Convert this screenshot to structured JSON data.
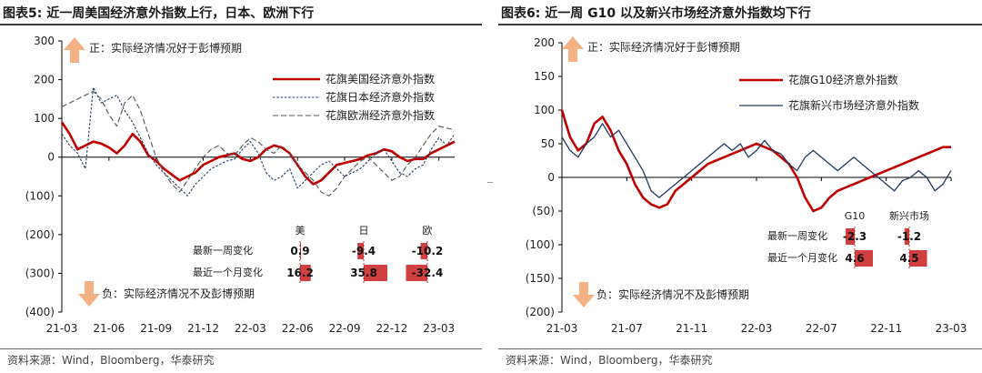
{
  "left": {
    "title": "图表5:   近一周美国经济意外指数上行，日本、欧洲下行",
    "source": "资料来源：Wind，Bloomberg，华泰研究",
    "up_note": "正：实际经济情况好于彭博预期",
    "down_note": "负：实际经济情况不及彭博预期",
    "table": {
      "headers": [
        "美",
        "日",
        "欧"
      ],
      "rows": [
        {
          "label": "最新一周变化",
          "values": [
            0.9,
            -9.4,
            -10.2
          ],
          "texts": [
            "0.9",
            "-9.4",
            "-10.2"
          ]
        },
        {
          "label": "最近一个月变化",
          "values": [
            16.2,
            35.8,
            -32.4
          ],
          "texts": [
            "16.2",
            "35.8",
            "-32.4"
          ]
        }
      ]
    }
  },
  "right": {
    "title": "图表6:   近一周 G10 以及新兴市场经济意外指数均下行",
    "source": "资料来源：Wind，Bloomberg，华泰研究",
    "up_note": "正：实际经济情况好于彭博预期",
    "down_note": "负：实际经济情况不及彭博预期",
    "table": {
      "headers": [
        "G10",
        "新兴市场"
      ],
      "rows": [
        {
          "label": "最新一周变化",
          "values": [
            -2.3,
            -1.2
          ],
          "texts": [
            "-2.3",
            "-1.2"
          ]
        },
        {
          "label": "最近一个月变化",
          "values": [
            4.6,
            4.5
          ],
          "texts": [
            "4.6",
            "4.5"
          ]
        }
      ]
    }
  },
  "colors": {
    "red": "#c00000",
    "navy": "#1f3864",
    "gray": "#555555",
    "arrow": "#f4b183"
  },
  "chart_data": [
    {
      "type": "line",
      "xlabel": "",
      "ylabel": "",
      "ylim": [
        -400,
        300
      ],
      "yticks": [
        300,
        200,
        100,
        0,
        -100,
        -200,
        -300,
        -400
      ],
      "ytick_labels": [
        "300",
        "200",
        "100",
        "0",
        "(100)",
        "(200)",
        "(300)",
        "(400)"
      ],
      "xlim": [
        0,
        25
      ],
      "xticks": [
        0,
        3,
        6,
        9,
        12,
        15,
        18,
        21,
        24
      ],
      "xtick_labels": [
        "21-03",
        "21-06",
        "21-09",
        "21-12",
        "22-03",
        "22-06",
        "22-09",
        "22-12",
        "23-03"
      ],
      "legend_position": "top-right",
      "series": [
        {
          "name": "花旗美国经济意外指数",
          "style": "solid-thick",
          "color": "#c00000",
          "x": [
            0,
            0.5,
            1,
            1.5,
            2,
            2.5,
            3,
            3.5,
            4,
            4.5,
            5,
            5.5,
            6,
            6.5,
            7,
            7.5,
            8,
            8.5,
            9,
            9.5,
            10,
            10.5,
            11,
            11.5,
            12,
            12.5,
            13,
            13.5,
            14,
            14.5,
            15,
            15.5,
            16,
            16.5,
            17,
            17.5,
            18,
            18.5,
            19,
            19.5,
            20,
            20.5,
            21,
            21.5,
            22,
            22.5,
            23,
            23.5,
            24,
            24.5,
            25
          ],
          "y": [
            90,
            60,
            20,
            30,
            40,
            35,
            25,
            10,
            30,
            60,
            40,
            5,
            -10,
            -30,
            -45,
            -60,
            -50,
            -40,
            -20,
            -10,
            0,
            5,
            10,
            -5,
            -10,
            0,
            20,
            30,
            25,
            10,
            -20,
            -50,
            -70,
            -60,
            -40,
            -20,
            -15,
            -10,
            -5,
            5,
            10,
            20,
            15,
            0,
            -10,
            -5,
            -5,
            10,
            20,
            30,
            40
          ]
        },
        {
          "name": "花旗日本经济意外指数",
          "style": "dotted",
          "color": "#1f3864",
          "x": [
            0,
            0.5,
            1,
            1.5,
            2,
            2.5,
            3,
            3.5,
            4,
            4.5,
            5,
            5.5,
            6,
            6.5,
            7,
            7.5,
            8,
            8.5,
            9,
            9.5,
            10,
            10.5,
            11,
            11.5,
            12,
            12.5,
            13,
            13.5,
            14,
            14.5,
            15,
            15.5,
            16,
            16.5,
            17,
            17.5,
            18,
            18.5,
            19,
            19.5,
            20,
            20.5,
            21,
            21.5,
            22,
            22.5,
            23,
            23.5,
            24,
            24.5,
            25
          ],
          "y": [
            60,
            30,
            10,
            -30,
            180,
            140,
            150,
            160,
            120,
            90,
            50,
            10,
            -20,
            -40,
            -60,
            -80,
            -100,
            -70,
            -50,
            -30,
            -20,
            -10,
            -5,
            20,
            40,
            10,
            -40,
            -60,
            -50,
            -30,
            -80,
            -60,
            -40,
            -20,
            -10,
            -30,
            -50,
            -40,
            -30,
            -10,
            10,
            20,
            -10,
            -40,
            -50,
            -30,
            -20,
            20,
            50,
            30,
            60
          ]
        },
        {
          "name": "花旗欧洲经济意外指数",
          "style": "dashed",
          "color": "#555555",
          "x": [
            0,
            0.5,
            1,
            1.5,
            2,
            2.5,
            3,
            3.5,
            4,
            4.5,
            5,
            5.5,
            6,
            6.5,
            7,
            7.5,
            8,
            8.5,
            9,
            9.5,
            10,
            10.5,
            11,
            11.5,
            12,
            12.5,
            13,
            13.5,
            14,
            14.5,
            15,
            15.5,
            16,
            16.5,
            17,
            17.5,
            18,
            18.5,
            19,
            19.5,
            20,
            20.5,
            21,
            21.5,
            22,
            22.5,
            23,
            23.5,
            24,
            24.5,
            25
          ],
          "y": [
            130,
            140,
            150,
            160,
            170,
            150,
            110,
            80,
            140,
            160,
            120,
            60,
            0,
            -40,
            -70,
            -90,
            -60,
            -30,
            0,
            20,
            30,
            10,
            5,
            30,
            50,
            40,
            20,
            10,
            30,
            10,
            -20,
            -40,
            -60,
            -90,
            -100,
            -80,
            -50,
            -30,
            -10,
            0,
            -20,
            -40,
            -60,
            -50,
            -20,
            0,
            30,
            60,
            80,
            75,
            70
          ]
        }
      ]
    },
    {
      "type": "line",
      "xlabel": "",
      "ylabel": "",
      "ylim": [
        -200,
        200
      ],
      "yticks": [
        200,
        150,
        100,
        50,
        0,
        -50,
        -100,
        -150,
        -200
      ],
      "ytick_labels": [
        "200",
        "150",
        "100",
        "50",
        "0",
        "(50)",
        "(100)",
        "(150)",
        "(200)"
      ],
      "xlim": [
        0,
        24
      ],
      "xticks": [
        0,
        4,
        8,
        12,
        16,
        20,
        24
      ],
      "xtick_labels": [
        "21-03",
        "21-07",
        "21-11",
        "22-03",
        "22-07",
        "22-11",
        "23-03"
      ],
      "legend_position": "top-right",
      "series": [
        {
          "name": "花旗G10经济意外指数",
          "style": "solid-thick",
          "color": "#c00000",
          "x": [
            0,
            0.5,
            1,
            1.5,
            2,
            2.5,
            3,
            3.5,
            4,
            4.5,
            5,
            5.5,
            6,
            6.5,
            7,
            7.5,
            8,
            8.5,
            9,
            9.5,
            10,
            10.5,
            11,
            11.5,
            12,
            12.5,
            13,
            13.5,
            14,
            14.5,
            15,
            15.5,
            16,
            16.5,
            17,
            17.5,
            18,
            18.5,
            19,
            19.5,
            20,
            20.5,
            21,
            21.5,
            22,
            22.5,
            23,
            23.5,
            24
          ],
          "y": [
            100,
            60,
            40,
            50,
            80,
            90,
            70,
            40,
            20,
            -10,
            -30,
            -40,
            -45,
            -40,
            -20,
            -10,
            0,
            10,
            20,
            25,
            30,
            35,
            40,
            45,
            50,
            45,
            40,
            30,
            20,
            0,
            -30,
            -50,
            -45,
            -30,
            -20,
            -15,
            -10,
            -5,
            0,
            5,
            10,
            15,
            20,
            25,
            30,
            35,
            40,
            45,
            45
          ]
        },
        {
          "name": "花旗新兴市场经济意外指数",
          "style": "solid-thin",
          "color": "#1f3864",
          "x": [
            0,
            0.5,
            1,
            1.5,
            2,
            2.5,
            3,
            3.5,
            4,
            4.5,
            5,
            5.5,
            6,
            6.5,
            7,
            7.5,
            8,
            8.5,
            9,
            9.5,
            10,
            10.5,
            11,
            11.5,
            12,
            12.5,
            13,
            13.5,
            14,
            14.5,
            15,
            15.5,
            16,
            16.5,
            17,
            17.5,
            18,
            18.5,
            19,
            19.5,
            20,
            20.5,
            21,
            21.5,
            22,
            22.5,
            23,
            23.5,
            24
          ],
          "y": [
            60,
            40,
            30,
            50,
            60,
            80,
            60,
            70,
            50,
            30,
            10,
            -20,
            -30,
            -20,
            -10,
            0,
            10,
            20,
            30,
            40,
            50,
            40,
            50,
            30,
            40,
            55,
            40,
            35,
            20,
            10,
            30,
            40,
            30,
            20,
            10,
            20,
            30,
            20,
            10,
            0,
            -10,
            -20,
            -5,
            0,
            10,
            0,
            -20,
            -10,
            10
          ]
        }
      ]
    }
  ]
}
